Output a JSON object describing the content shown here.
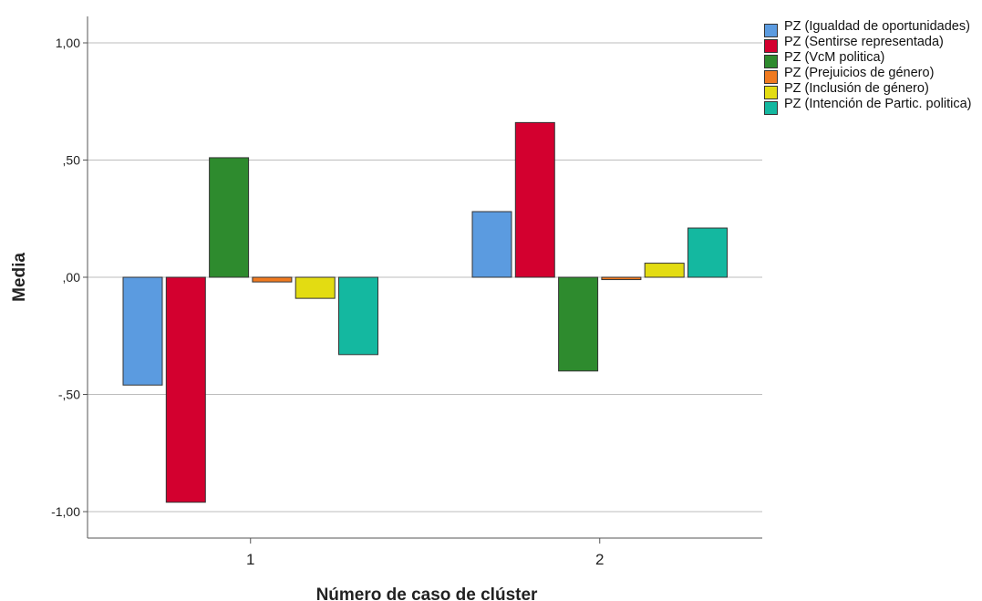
{
  "chart_data": {
    "type": "bar",
    "categories": [
      "1",
      "2"
    ],
    "series": [
      {
        "name": "PZ (Igualdad de oportunidades)",
        "values": [
          -0.46,
          0.28
        ],
        "color": "#5b9be0"
      },
      {
        "name": "PZ (Sentirse representada)",
        "values": [
          -0.96,
          0.66
        ],
        "color": "#d3002f"
      },
      {
        "name": "PZ (VcM politica)",
        "values": [
          0.51,
          -0.4
        ],
        "color": "#2e8b2e"
      },
      {
        "name": "PZ (Prejuicios de género)",
        "values": [
          -0.02,
          -0.01
        ],
        "color": "#f07a20"
      },
      {
        "name": "PZ (Inclusión de género)",
        "values": [
          -0.09,
          0.06
        ],
        "color": "#e3dc12"
      },
      {
        "name": "PZ (Intención de Partic. politica)",
        "values": [
          -0.33,
          0.21
        ],
        "color": "#14b8a0"
      }
    ],
    "yticks": [
      1.0,
      0.5,
      0.0,
      -0.5,
      -1.0
    ],
    "ytick_labels": [
      "1,00",
      ",50",
      ",00",
      "-,50",
      "-1,00"
    ],
    "xlabel": "Número de caso de clúster",
    "ylabel": "Media",
    "ylim": [
      -1.1,
      1.1
    ],
    "grid": true,
    "legend_position": "top-right"
  }
}
